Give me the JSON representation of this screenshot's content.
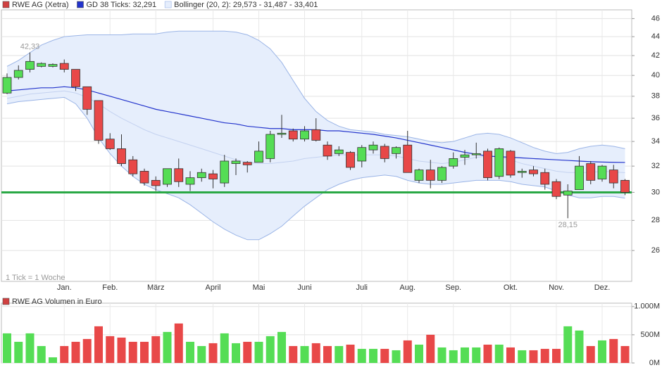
{
  "chart_data": [
    {
      "type": "candlestick",
      "categories": [
        null,
        null,
        null,
        null,
        null,
        "Jan.",
        null,
        null,
        null,
        "Feb.",
        null,
        null,
        null,
        "März",
        null,
        null,
        null,
        null,
        "April",
        null,
        null,
        null,
        "Mai",
        null,
        null,
        null,
        "Juni",
        null,
        null,
        null,
        null,
        "Juli",
        null,
        null,
        null,
        "Aug.",
        null,
        null,
        null,
        "Sep.",
        null,
        null,
        null,
        null,
        "Okt.",
        null,
        null,
        null,
        "Nov.",
        null,
        null,
        null,
        "Dez.",
        null,
        null
      ],
      "name": "RWE AG (Xetra)",
      "legend_color": "#d04040",
      "up_color": "#55dd55",
      "down_color": "#e84848",
      "open": [
        38.3,
        39.8,
        40.6,
        40.9,
        40.9,
        41.2,
        40.6,
        38.9,
        37.6,
        34.2,
        33.4,
        32.5,
        31.6,
        30.9,
        30.6,
        31.8,
        30.6,
        31.1,
        31.4,
        30.7,
        32.2,
        32.3,
        32.3,
        32.6,
        34.6,
        34.9,
        34.2,
        35.0,
        33.7,
        33.0,
        33.1,
        32.4,
        33.3,
        33.6,
        33.0,
        33.7,
        30.9,
        31.7,
        30.9,
        32.0,
        32.7,
        32.9,
        33.2,
        31.2,
        33.2,
        31.5,
        31.7,
        31.5,
        30.8,
        29.8,
        30.2,
        32.2,
        31.0,
        31.7,
        30.9
      ],
      "high": [
        40.2,
        41.0,
        42.33,
        41.3,
        41.2,
        41.6,
        40.6,
        38.9,
        37.6,
        34.7,
        34.6,
        32.8,
        31.8,
        31.2,
        31.8,
        32.6,
        31.6,
        31.8,
        31.7,
        32.9,
        32.6,
        32.4,
        34.0,
        34.9,
        36.3,
        35.1,
        35.3,
        36.0,
        34.0,
        33.6,
        33.2,
        33.7,
        34.0,
        33.8,
        33.6,
        34.9,
        31.8,
        32.5,
        32.0,
        33.1,
        33.3,
        33.9,
        33.4,
        33.5,
        33.3,
        31.8,
        32.0,
        31.8,
        31.0,
        30.6,
        32.8,
        32.4,
        32.1,
        32.1,
        31.0
      ],
      "low": [
        38.2,
        39.6,
        40.3,
        40.8,
        40.8,
        40.3,
        38.5,
        36.3,
        33.8,
        33.3,
        32.0,
        31.2,
        30.5,
        30.1,
        30.4,
        30.4,
        30.1,
        30.8,
        30.3,
        30.4,
        31.3,
        31.5,
        32.3,
        32.3,
        34.3,
        34.0,
        34.0,
        34.0,
        32.5,
        32.8,
        31.7,
        31.9,
        33.0,
        32.3,
        32.6,
        31.5,
        30.7,
        30.3,
        30.7,
        31.8,
        32.1,
        32.6,
        30.9,
        31.0,
        31.1,
        31.1,
        31.2,
        30.2,
        29.5,
        28.15,
        30.2,
        30.6,
        30.8,
        30.3,
        29.8
      ],
      "close": [
        39.8,
        40.5,
        41.4,
        41.2,
        41.1,
        40.6,
        38.9,
        36.8,
        34.1,
        33.4,
        32.2,
        31.4,
        30.7,
        30.5,
        31.8,
        30.8,
        31.1,
        31.5,
        31.0,
        32.4,
        32.4,
        32.1,
        33.2,
        34.6,
        34.7,
        34.2,
        34.9,
        34.1,
        32.8,
        33.3,
        31.9,
        33.5,
        33.7,
        32.6,
        33.5,
        31.5,
        31.7,
        30.9,
        31.9,
        32.6,
        32.9,
        33.0,
        31.1,
        33.4,
        31.3,
        31.6,
        31.4,
        30.6,
        29.7,
        30.1,
        32.0,
        30.9,
        32.0,
        30.7,
        30.0
      ],
      "series": [
        {
          "name": "GD 38 Ticks: 32,291",
          "color": "#2233cc",
          "values": [
            38.5,
            38.6,
            38.7,
            38.8,
            38.8,
            38.9,
            38.8,
            38.6,
            38.3,
            38.0,
            37.7,
            37.4,
            37.1,
            36.8,
            36.6,
            36.4,
            36.2,
            36.0,
            35.8,
            35.6,
            35.5,
            35.3,
            35.2,
            35.1,
            35.1,
            35.0,
            35.0,
            35.0,
            34.9,
            34.9,
            34.8,
            34.7,
            34.6,
            34.45,
            34.3,
            34.1,
            33.9,
            33.7,
            33.5,
            33.3,
            33.1,
            32.95,
            32.8,
            32.75,
            32.7,
            32.65,
            32.6,
            32.55,
            32.5,
            32.45,
            32.4,
            32.35,
            32.32,
            32.3,
            32.291
          ]
        }
      ],
      "band": {
        "name": "Bollinger (20, 2): 29,573 - 31,487 - 33,401",
        "color": "#9ab4e6",
        "fill": "#e6eefc",
        "middle_color": "#c4d2f0",
        "upper": [
          40.9,
          41.5,
          42.3,
          43.1,
          43.6,
          44.0,
          44.1,
          44.2,
          44.2,
          44.2,
          44.2,
          44.3,
          44.3,
          44.3,
          44.5,
          44.6,
          44.6,
          44.6,
          44.6,
          44.6,
          44.5,
          44.2,
          43.6,
          42.7,
          41.3,
          39.5,
          37.8,
          36.6,
          35.8,
          35.3,
          35.0,
          34.9,
          34.8,
          34.6,
          34.5,
          34.4,
          34.2,
          34.0,
          33.9,
          34.0,
          34.3,
          34.6,
          34.7,
          34.6,
          34.3,
          33.9,
          33.5,
          33.2,
          33.0,
          33.1,
          33.4,
          33.6,
          33.7,
          33.6,
          33.401
        ],
        "middle": [
          37.8,
          38.0,
          38.2,
          38.3,
          38.4,
          38.5,
          38.3,
          37.9,
          37.3,
          36.6,
          36.0,
          35.5,
          35.0,
          34.6,
          34.3,
          34.0,
          33.7,
          33.4,
          33.1,
          32.8,
          32.5,
          32.3,
          32.2,
          32.2,
          32.3,
          32.4,
          32.6,
          32.7,
          32.8,
          32.9,
          32.9,
          32.9,
          32.9,
          32.9,
          32.8,
          32.6,
          32.4,
          32.3,
          32.2,
          32.3,
          32.5,
          32.7,
          32.8,
          32.7,
          32.5,
          32.2,
          32.0,
          31.8,
          31.6,
          31.5,
          31.5,
          31.5,
          31.6,
          31.55,
          31.487
        ],
        "lower": [
          37.3,
          37.5,
          37.6,
          37.7,
          37.8,
          37.9,
          37.3,
          36.0,
          34.3,
          33.0,
          32.0,
          31.2,
          30.6,
          30.2,
          29.9,
          29.6,
          29.1,
          28.5,
          27.9,
          27.4,
          27.0,
          26.7,
          26.7,
          27.1,
          27.6,
          28.3,
          29.0,
          29.6,
          30.2,
          30.6,
          30.9,
          31.1,
          31.2,
          31.3,
          31.2,
          30.9,
          30.7,
          30.6,
          30.6,
          30.7,
          30.8,
          30.9,
          30.9,
          30.9,
          30.8,
          30.6,
          30.5,
          30.4,
          30.1,
          29.8,
          29.6,
          29.6,
          29.7,
          29.7,
          29.573
        ]
      },
      "hlines": [
        {
          "value": 30,
          "color": "#2aa845"
        }
      ],
      "annotations": [
        {
          "x": 2,
          "value": 42.33,
          "label": "42,33"
        },
        {
          "x": 49,
          "value": 28.15,
          "label": "28,15"
        }
      ],
      "note": "1 Tick = 1 Woche",
      "log_scale": true,
      "ylim": [
        24.1,
        47
      ],
      "yticks": [
        26,
        28,
        30,
        32,
        34,
        36,
        38,
        40,
        42,
        44,
        46
      ],
      "grid": true
    },
    {
      "type": "bar",
      "title": "RWE AG Volumen in Euro",
      "legend_color": "#d04040",
      "values": [
        525,
        375,
        525,
        300,
        100,
        300,
        375,
        425,
        650,
        475,
        450,
        375,
        375,
        475,
        550,
        700,
        375,
        300,
        350,
        525,
        350,
        375,
        375,
        475,
        550,
        300,
        300,
        350,
        300,
        300,
        325,
        250,
        250,
        250,
        225,
        400,
        325,
        500,
        275,
        225,
        275,
        275,
        325,
        325,
        275,
        225,
        225,
        250,
        250,
        650,
        575,
        300,
        400,
        425,
        300
      ],
      "ylim": [
        0,
        1060
      ],
      "yticks": [
        {
          "value": 0,
          "label": "0M"
        },
        {
          "value": 500,
          "label": "500M"
        },
        {
          "value": 1000,
          "label": "1.000M"
        }
      ],
      "grid": true
    }
  ]
}
